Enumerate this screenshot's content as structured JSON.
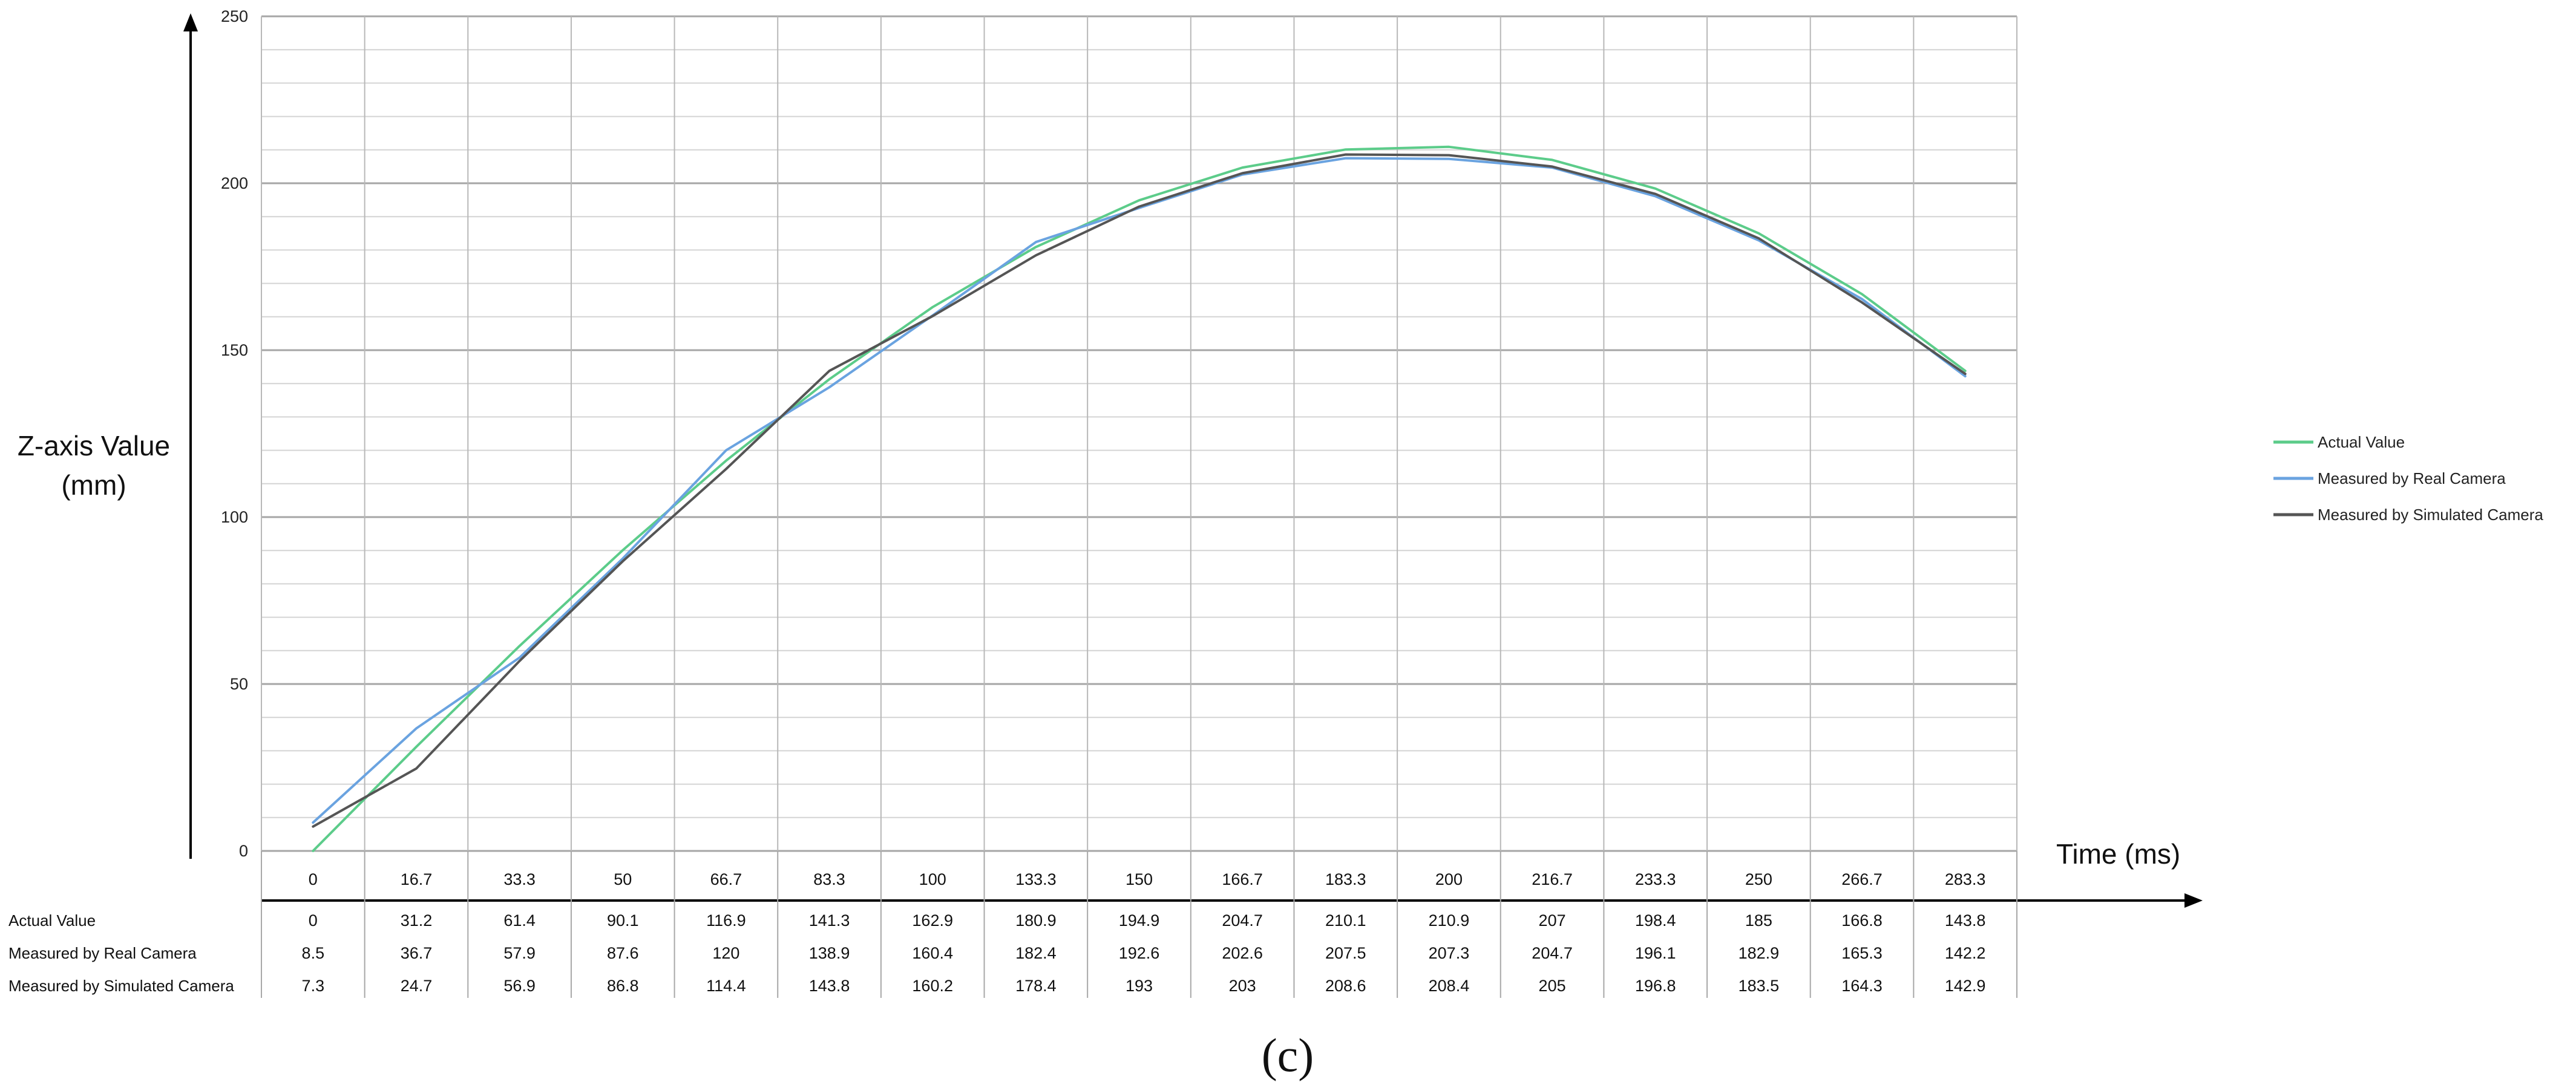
{
  "chart_data": {
    "type": "line",
    "title": "",
    "xlabel": "Time (ms)",
    "ylabel_lines": [
      "Z-axis Value",
      "(mm)"
    ],
    "ylim": [
      0,
      250
    ],
    "yticks": [
      0,
      50,
      100,
      150,
      200,
      250
    ],
    "categories": [
      "0",
      "16.7",
      "33.3",
      "50",
      "66.7",
      "83.3",
      "100",
      "133.3",
      "150",
      "166.7",
      "183.3",
      "200",
      "216.7",
      "233.3",
      "250",
      "266.7",
      "283.3"
    ],
    "series": [
      {
        "name": "Actual Value",
        "color": "#5ccc8a",
        "values": [
          0,
          31.2,
          61.4,
          90.1,
          116.9,
          141.3,
          162.9,
          180.9,
          194.9,
          204.7,
          210.1,
          210.9,
          207,
          198.4,
          185,
          166.8,
          143.8
        ],
        "display": [
          "0",
          "31.2",
          "61.4",
          "90.1",
          "116.9",
          "141.3",
          "162.9",
          "180.9",
          "194.9",
          "204.7",
          "210.1",
          "210.9",
          "207",
          "198.4",
          "185",
          "166.8",
          "143.8"
        ]
      },
      {
        "name": "Measured by Real Camera",
        "color": "#6aa3e0",
        "values": [
          8.5,
          36.7,
          57.9,
          87.6,
          120,
          138.9,
          160.4,
          182.4,
          192.6,
          202.6,
          207.5,
          207.3,
          204.7,
          196.1,
          182.9,
          165.3,
          142.2
        ],
        "display": [
          "8.5",
          "36.7",
          "57.9",
          "87.6",
          "120",
          "138.9",
          "160.4",
          "182.4",
          "192.6",
          "202.6",
          "207.5",
          "207.3",
          "204.7",
          "196.1",
          "182.9",
          "165.3",
          "142.2"
        ]
      },
      {
        "name": "Measured by Simulated Camera",
        "color": "#555555",
        "values": [
          7.3,
          24.7,
          56.9,
          86.8,
          114.4,
          143.8,
          160.2,
          178.4,
          193,
          203,
          208.6,
          208.4,
          205,
          196.8,
          183.5,
          164.3,
          142.9
        ],
        "display": [
          "7.3",
          "24.7",
          "56.9",
          "86.8",
          "114.4",
          "143.8",
          "160.2",
          "178.4",
          "193",
          "203",
          "208.6",
          "208.4",
          "205",
          "196.8",
          "183.5",
          "164.3",
          "142.9"
        ]
      }
    ],
    "grid": true,
    "legend": "right",
    "data_table": true
  },
  "caption": "(c)"
}
